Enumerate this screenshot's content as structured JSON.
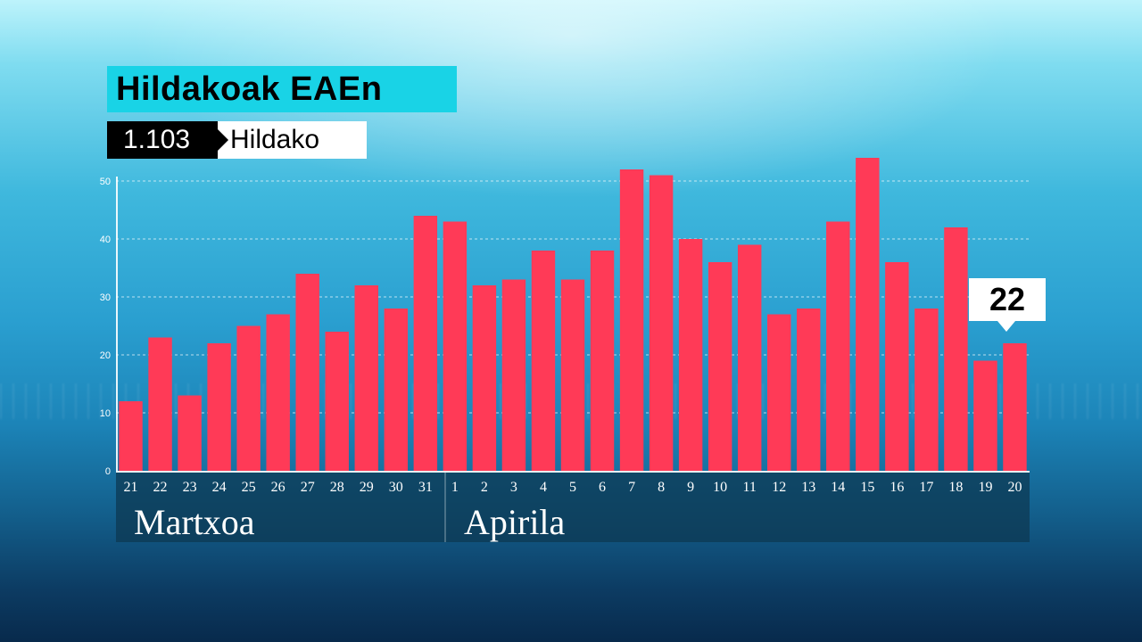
{
  "header": {
    "title": "Hildakoak EAEn",
    "total_value": "1.103",
    "total_label": "Hildako"
  },
  "months": {
    "march": "Martxoa",
    "april": "Apirila"
  },
  "callout": {
    "value": "22"
  },
  "colors": {
    "bar": "#ff3a57",
    "title_bg": "#19d3e6"
  },
  "chart_data": {
    "type": "bar",
    "title": "Hildakoak EAEn",
    "xlabel": "",
    "ylabel": "",
    "ylim": [
      0,
      50
    ],
    "yticks": [
      0,
      10,
      20,
      30,
      40,
      50
    ],
    "grid": true,
    "categories": [
      "21",
      "22",
      "23",
      "24",
      "25",
      "26",
      "27",
      "28",
      "29",
      "30",
      "31",
      "1",
      "2",
      "3",
      "4",
      "5",
      "6",
      "7",
      "8",
      "9",
      "10",
      "11",
      "12",
      "13",
      "14",
      "15",
      "16",
      "17",
      "18",
      "19",
      "20"
    ],
    "values": [
      12,
      23,
      13,
      22,
      25,
      27,
      34,
      24,
      32,
      28,
      44,
      43,
      32,
      33,
      38,
      33,
      38,
      52,
      51,
      40,
      36,
      39,
      27,
      28,
      43,
      54,
      36,
      28,
      42,
      19,
      22
    ]
  }
}
